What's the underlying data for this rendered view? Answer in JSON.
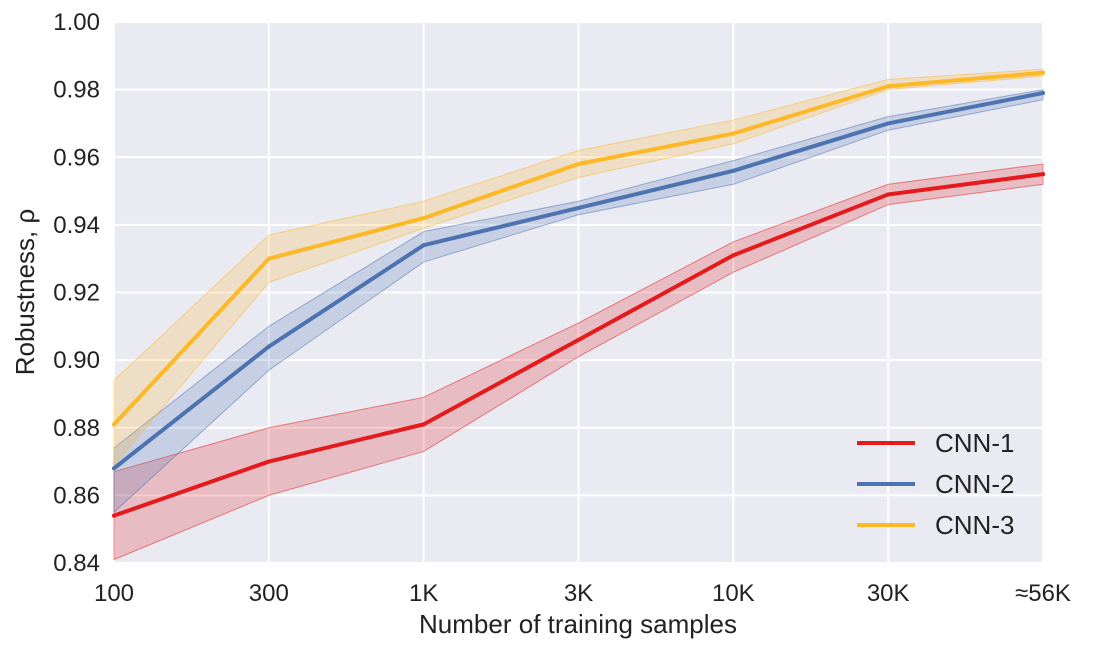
{
  "chart_data": {
    "type": "line",
    "title": "",
    "xlabel": "Number of training samples",
    "ylabel": "Robustness, ρ",
    "categories": [
      "100",
      "300",
      "1K",
      "3K",
      "10K",
      "30K",
      "≈56K"
    ],
    "ylim": [
      0.84,
      1.0
    ],
    "yticks": [
      0.84,
      0.86,
      0.88,
      0.9,
      0.92,
      0.94,
      0.96,
      0.98,
      1.0
    ],
    "ytick_labels": [
      "0.84",
      "0.86",
      "0.88",
      "0.90",
      "0.92",
      "0.94",
      "0.96",
      "0.98",
      "1.00"
    ],
    "grid": true,
    "legend_position": "bottom-right",
    "series": [
      {
        "name": "CNN-1",
        "color": "#e41a1c",
        "values": [
          0.854,
          0.87,
          0.881,
          0.906,
          0.931,
          0.949,
          0.955
        ],
        "lower": [
          0.841,
          0.86,
          0.873,
          0.901,
          0.926,
          0.946,
          0.952
        ],
        "upper": [
          0.867,
          0.88,
          0.889,
          0.911,
          0.935,
          0.952,
          0.958
        ]
      },
      {
        "name": "CNN-2",
        "color": "#4c72b0",
        "values": [
          0.868,
          0.904,
          0.934,
          0.945,
          0.956,
          0.97,
          0.979
        ],
        "lower": [
          0.855,
          0.897,
          0.929,
          0.943,
          0.952,
          0.968,
          0.977
        ],
        "upper": [
          0.874,
          0.91,
          0.938,
          0.947,
          0.959,
          0.972,
          0.98
        ]
      },
      {
        "name": "CNN-3",
        "color": "#fdb827",
        "values": [
          0.881,
          0.93,
          0.942,
          0.958,
          0.967,
          0.981,
          0.985
        ],
        "lower": [
          0.869,
          0.923,
          0.939,
          0.954,
          0.964,
          0.98,
          0.984
        ],
        "upper": [
          0.894,
          0.937,
          0.947,
          0.962,
          0.971,
          0.983,
          0.986
        ]
      }
    ]
  }
}
